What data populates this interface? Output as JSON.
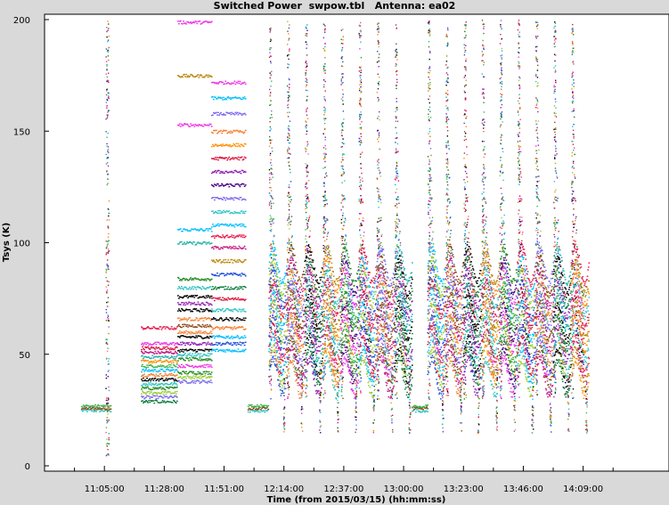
{
  "title": "Switched Power  swpow.tbl   Antenna: ea02",
  "chart_data": {
    "type": "scatter",
    "title": "Switched Power  swpow.tbl   Antenna: ea02",
    "xlabel": "Time (from 2015/03/15) (hh:mm:ss)",
    "ylabel": "Tsys (K)",
    "ylim": [
      0,
      200
    ],
    "xlim": [
      "10:42:00",
      "14:42:00"
    ],
    "x_ticks": [
      "11:05:00",
      "11:28:00",
      "11:51:00",
      "12:14:00",
      "12:37:00",
      "13:00:00",
      "13:23:00",
      "13:46:00",
      "14:09:00"
    ],
    "y_ticks": [
      0,
      50,
      100,
      150,
      200
    ],
    "grid": false,
    "colors": [
      "#e6194b",
      "#3cb44b",
      "#1f4fd8",
      "#f58231",
      "#911eb4",
      "#2ec4c4",
      "#f032e6",
      "#9acd32",
      "#c71585",
      "#0a7a3a",
      "#ff8c00",
      "#4b0082",
      "#00bfff",
      "#8b4513",
      "#000000",
      "#b8860b",
      "#228b22",
      "#dc143c",
      "#7b68ee",
      "#20b2aa"
    ],
    "segments": [
      {
        "kind": "flat",
        "start": "10:56:00",
        "end": "11:07:30",
        "levels": [
          25,
          26,
          27
        ]
      },
      {
        "kind": "spike",
        "time": "11:06:00",
        "levels": [
          4,
          30,
          60,
          90,
          120,
          150,
          180,
          200
        ]
      },
      {
        "kind": "flat",
        "start": "11:19:00",
        "end": "11:33:00",
        "levels": [
          29,
          31,
          33,
          35,
          37,
          39,
          41,
          43,
          45,
          47,
          49,
          51,
          53,
          55,
          62
        ]
      },
      {
        "kind": "flat",
        "start": "11:33:00",
        "end": "11:46:00",
        "levels": [
          38,
          40,
          42,
          45,
          48,
          50,
          52,
          55,
          58,
          60,
          63,
          66,
          70,
          73,
          76,
          80,
          84,
          100,
          106,
          153,
          175,
          199
        ]
      },
      {
        "kind": "flat",
        "start": "11:46:00",
        "end": "11:59:00",
        "levels": [
          52,
          55,
          58,
          62,
          66,
          70,
          75,
          80,
          86,
          92,
          98,
          103,
          108,
          114,
          120,
          126,
          132,
          138,
          144,
          150,
          158,
          165,
          172
        ]
      },
      {
        "kind": "flat",
        "start": "12:00:00",
        "end": "12:08:00",
        "levels": [
          25,
          26,
          27
        ]
      },
      {
        "kind": "cycles",
        "start": "12:08:00",
        "end": "13:03:00",
        "period_min": 6.9,
        "base_levels": [
          40,
          45,
          50,
          55,
          60,
          65,
          70,
          75,
          80,
          85,
          90
        ],
        "peak_levels": [
          100,
          110,
          120,
          135,
          150,
          165,
          180,
          195
        ]
      },
      {
        "kind": "flat",
        "start": "13:03:00",
        "end": "13:09:00",
        "levels": [
          25,
          26,
          27
        ]
      },
      {
        "kind": "cycles",
        "start": "13:09:00",
        "end": "14:06:00",
        "period_min": 6.9,
        "base_levels": [
          40,
          45,
          50,
          55,
          60,
          65,
          70,
          75,
          80,
          85,
          90
        ],
        "peak_levels": [
          100,
          110,
          120,
          135,
          150,
          165,
          180,
          195
        ]
      }
    ]
  }
}
